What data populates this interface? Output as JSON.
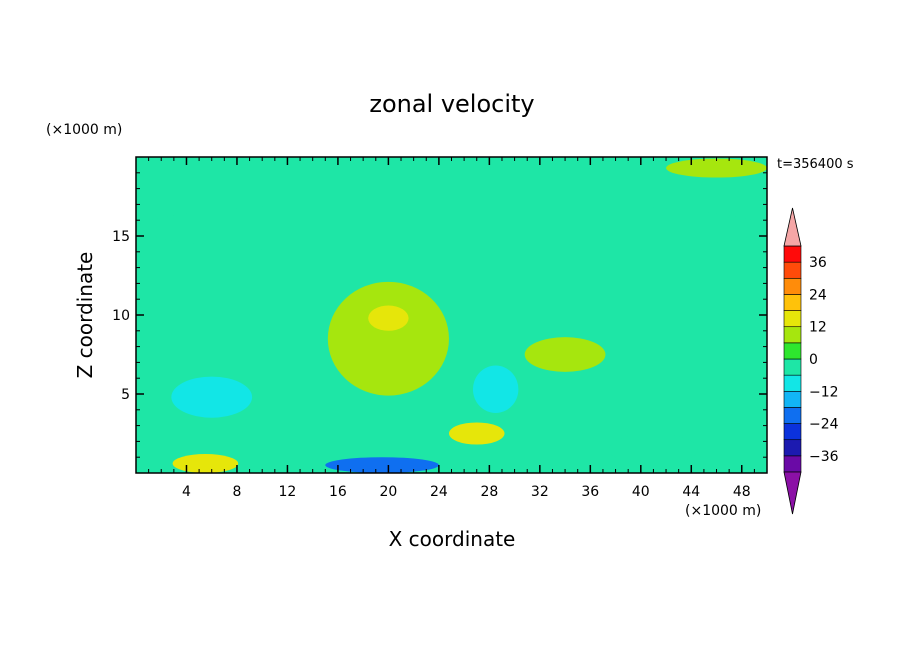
{
  "chart_data": {
    "type": "heatmap",
    "title": "zonal velocity",
    "xlabel": "X coordinate",
    "ylabel": "Z coordinate",
    "x_unit": "(×1000 m)",
    "y_unit": "(×1000 m)",
    "time_label": "t=356400 s",
    "xlim": [
      0,
      50
    ],
    "ylim": [
      0,
      20
    ],
    "x_ticks": [
      4,
      8,
      12,
      16,
      20,
      24,
      28,
      32,
      36,
      40,
      44,
      48
    ],
    "x_tick_labels": [
      "4",
      "8",
      "12",
      "16",
      "20",
      "24",
      "28",
      "32",
      "36",
      "40",
      "44",
      "48"
    ],
    "y_ticks": [
      5,
      10,
      15
    ],
    "y_tick_labels": [
      "5",
      "10",
      "15"
    ],
    "grid": false,
    "legend": "colorbar-right",
    "colorbar": {
      "levels": [
        -42,
        -36,
        -30,
        -24,
        -18,
        -12,
        -6,
        0,
        6,
        12,
        18,
        24,
        30,
        36,
        42
      ],
      "tick_values": [
        36,
        24,
        12,
        0,
        -12,
        -24,
        -36
      ],
      "tick_labels": [
        "36",
        "24",
        "12",
        "0",
        "−12",
        "−24",
        "−36"
      ],
      "colors": [
        "#6a0aa6",
        "#1c1ab0",
        "#0b32dc",
        "#0f6ff0",
        "#12b5f5",
        "#12e6e6",
        "#1ee6a6",
        "#2ee62e",
        "#a6e60e",
        "#e6e60a",
        "#ffc20a",
        "#ff8c0a",
        "#ff4b0a",
        "#ff0a0a"
      ],
      "under_color": "#8b10a6",
      "over_color": "#f5a6a6"
    },
    "features": [
      {
        "x": 0,
        "z": 0,
        "value": 1,
        "kind": "background"
      },
      {
        "x": 25,
        "z": 15.5,
        "value": -4,
        "kind": "band"
      },
      {
        "x": 6,
        "z": 4.8,
        "value": -8,
        "kind": "blob"
      },
      {
        "x": 20,
        "z": 8.5,
        "value": 8,
        "kind": "blob"
      },
      {
        "x": 20,
        "z": 9.8,
        "value": 14,
        "kind": "blob"
      },
      {
        "x": 5.5,
        "z": 0.6,
        "value": 14,
        "kind": "blob"
      },
      {
        "x": 27,
        "z": 2.5,
        "value": 12,
        "kind": "blob"
      },
      {
        "x": 19.5,
        "z": 0.5,
        "value": -22,
        "kind": "blob"
      },
      {
        "x": 28.5,
        "z": 5.3,
        "value": -8,
        "kind": "blob"
      },
      {
        "x": 34,
        "z": 7.5,
        "value": 6,
        "kind": "blob"
      },
      {
        "x": 41,
        "z": 1.5,
        "value": -6,
        "kind": "blob"
      },
      {
        "x": 46,
        "z": 19.3,
        "value": 6,
        "kind": "blob"
      }
    ]
  }
}
